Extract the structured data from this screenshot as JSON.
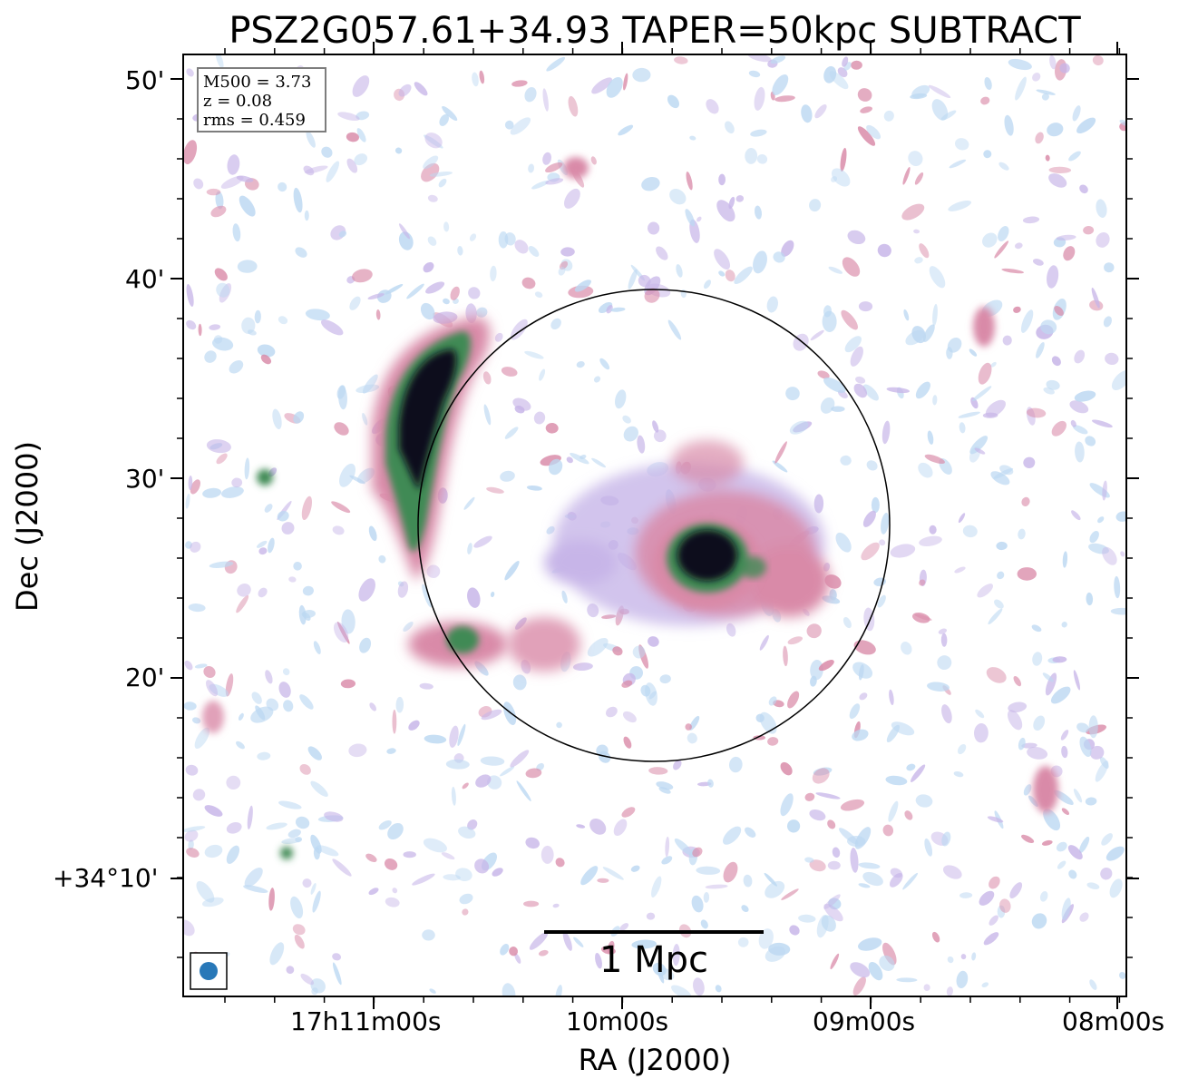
{
  "title": "PSZ2G057.61+34.93 TAPER=50kpc SUBTRACT",
  "info": {
    "mass": "M500 = 3.73",
    "redshift": "z = 0.08",
    "rms": "rms = 0.459"
  },
  "axes": {
    "xlabel": "RA (J2000)",
    "ylabel": "Dec (J2000)",
    "xticks": [
      "17h11m00s",
      "10m00s",
      "09m00s",
      "08m00s"
    ],
    "yticks": [
      "50'",
      "40'",
      "30'",
      "20'",
      "+34°10'"
    ]
  },
  "scalebar": {
    "label": "1 Mpc"
  },
  "colors": {
    "faint": "#bcd8f2",
    "low": "#c7b5e8",
    "mid": "#d98aa8",
    "high": "#3f8a55",
    "peak": "#0d0d1a",
    "beam": "#2878b8"
  },
  "icons": {
    "beam": "beam-ellipse-icon",
    "circle": "r500-circle-icon"
  }
}
